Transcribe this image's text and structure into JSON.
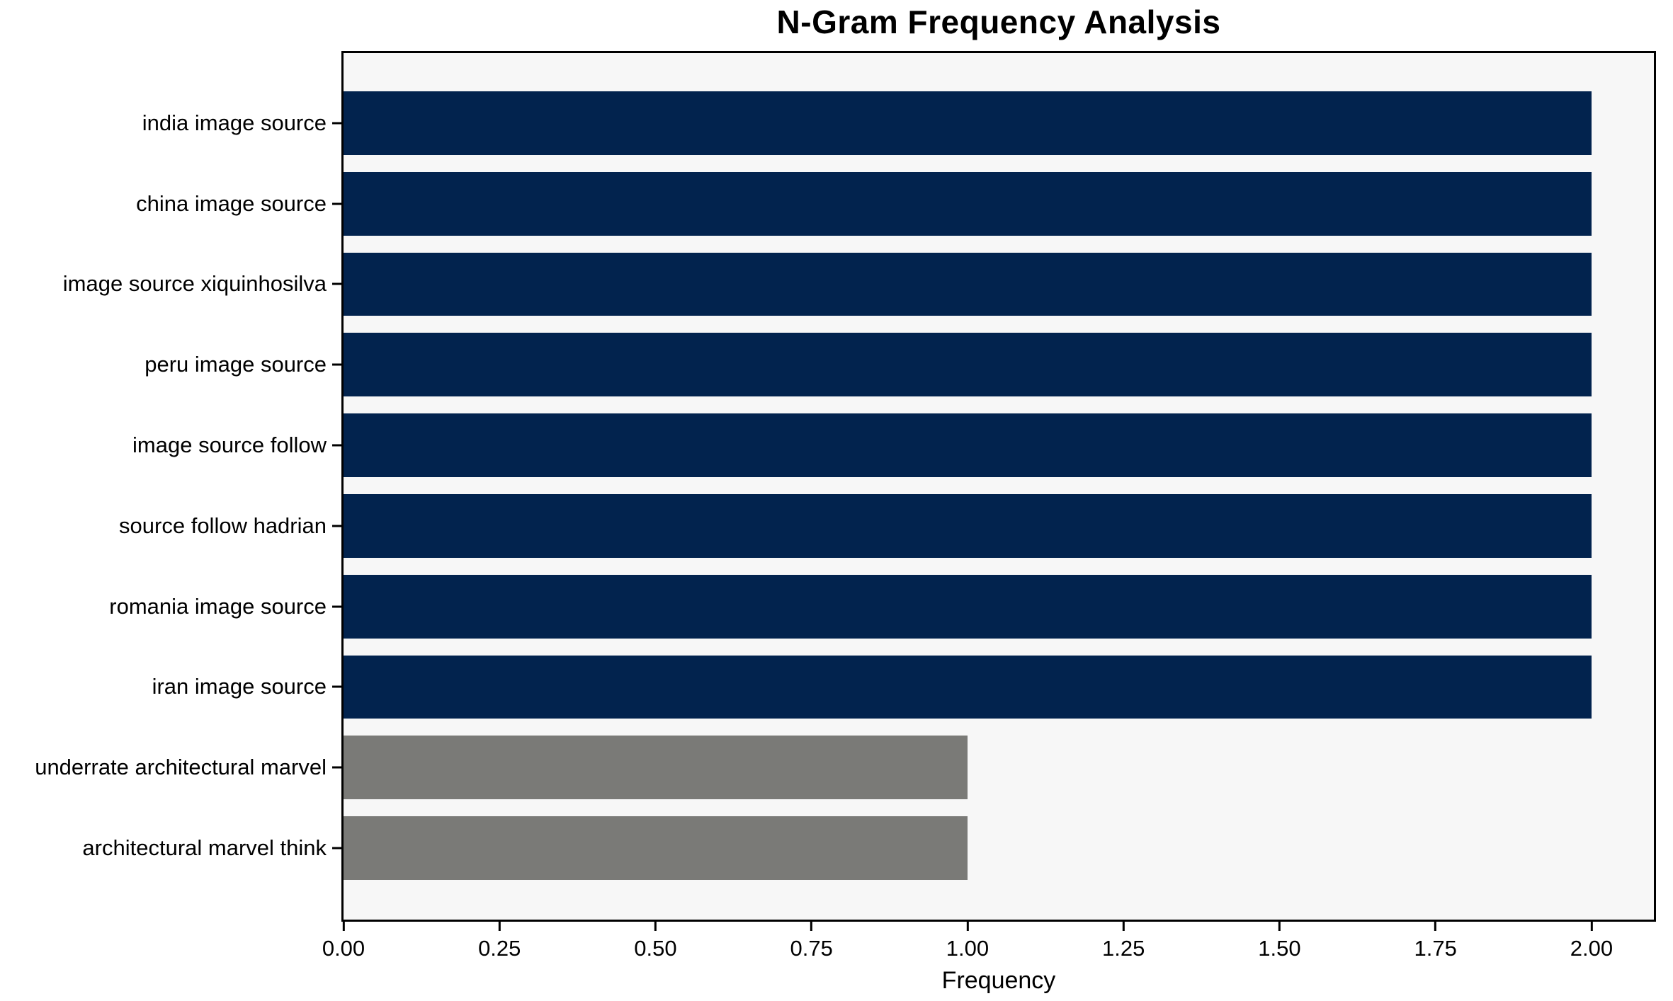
{
  "chart_data": {
    "type": "bar",
    "orientation": "horizontal",
    "title": "N-Gram Frequency Analysis",
    "xlabel": "Frequency",
    "ylabel": "",
    "categories": [
      "india image source",
      "china image source",
      "image source xiquinhosilva",
      "peru image source",
      "image source follow",
      "source follow hadrian",
      "romania image source",
      "iran image source",
      "underrate architectural marvel",
      "architectural marvel think"
    ],
    "values": [
      2,
      2,
      2,
      2,
      2,
      2,
      2,
      2,
      1,
      1
    ],
    "bar_colors": [
      "#02234e",
      "#02234e",
      "#02234e",
      "#02234e",
      "#02234e",
      "#02234e",
      "#02234e",
      "#02234e",
      "#7a7a77",
      "#7a7a77"
    ],
    "xlim": [
      0,
      2.1
    ],
    "xticks": [
      0,
      0.25,
      0.5,
      0.75,
      1.0,
      1.25,
      1.5,
      1.75,
      2.0
    ],
    "xtick_labels": [
      "0.00",
      "0.25",
      "0.50",
      "0.75",
      "1.00",
      "1.25",
      "1.50",
      "1.75",
      "2.00"
    ],
    "grid": false,
    "legend": false,
    "colors": {
      "plot_background": "#f7f7f7",
      "figure_background": "#ffffff",
      "axis_frame": "#000000",
      "text": "#000000"
    }
  }
}
